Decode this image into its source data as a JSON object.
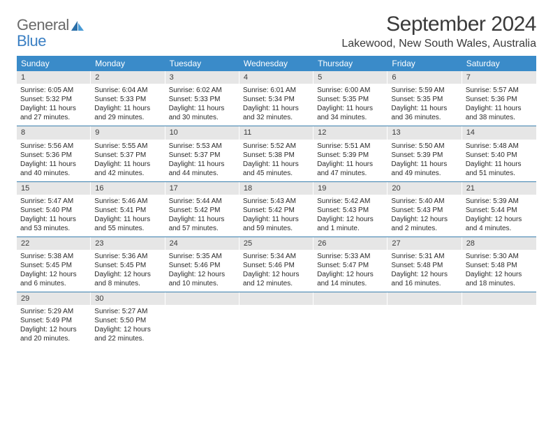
{
  "logo": {
    "text1": "General",
    "text2": "Blue"
  },
  "title": "September 2024",
  "location": "Lakewood, New South Wales, Australia",
  "colors": {
    "header_bg": "#3a8bc9",
    "header_text": "#ffffff",
    "daynum_bg": "#e6e6e6",
    "rule": "#3a7fae",
    "logo_gray": "#6a6a6a",
    "logo_blue": "#3a7fc3"
  },
  "dayNames": [
    "Sunday",
    "Monday",
    "Tuesday",
    "Wednesday",
    "Thursday",
    "Friday",
    "Saturday"
  ],
  "weeks": [
    [
      {
        "n": "1",
        "sr": "6:05 AM",
        "ss": "5:32 PM",
        "dl": "11 hours and 27 minutes."
      },
      {
        "n": "2",
        "sr": "6:04 AM",
        "ss": "5:33 PM",
        "dl": "11 hours and 29 minutes."
      },
      {
        "n": "3",
        "sr": "6:02 AM",
        "ss": "5:33 PM",
        "dl": "11 hours and 30 minutes."
      },
      {
        "n": "4",
        "sr": "6:01 AM",
        "ss": "5:34 PM",
        "dl": "11 hours and 32 minutes."
      },
      {
        "n": "5",
        "sr": "6:00 AM",
        "ss": "5:35 PM",
        "dl": "11 hours and 34 minutes."
      },
      {
        "n": "6",
        "sr": "5:59 AM",
        "ss": "5:35 PM",
        "dl": "11 hours and 36 minutes."
      },
      {
        "n": "7",
        "sr": "5:57 AM",
        "ss": "5:36 PM",
        "dl": "11 hours and 38 minutes."
      }
    ],
    [
      {
        "n": "8",
        "sr": "5:56 AM",
        "ss": "5:36 PM",
        "dl": "11 hours and 40 minutes."
      },
      {
        "n": "9",
        "sr": "5:55 AM",
        "ss": "5:37 PM",
        "dl": "11 hours and 42 minutes."
      },
      {
        "n": "10",
        "sr": "5:53 AM",
        "ss": "5:37 PM",
        "dl": "11 hours and 44 minutes."
      },
      {
        "n": "11",
        "sr": "5:52 AM",
        "ss": "5:38 PM",
        "dl": "11 hours and 45 minutes."
      },
      {
        "n": "12",
        "sr": "5:51 AM",
        "ss": "5:39 PM",
        "dl": "11 hours and 47 minutes."
      },
      {
        "n": "13",
        "sr": "5:50 AM",
        "ss": "5:39 PM",
        "dl": "11 hours and 49 minutes."
      },
      {
        "n": "14",
        "sr": "5:48 AM",
        "ss": "5:40 PM",
        "dl": "11 hours and 51 minutes."
      }
    ],
    [
      {
        "n": "15",
        "sr": "5:47 AM",
        "ss": "5:40 PM",
        "dl": "11 hours and 53 minutes."
      },
      {
        "n": "16",
        "sr": "5:46 AM",
        "ss": "5:41 PM",
        "dl": "11 hours and 55 minutes."
      },
      {
        "n": "17",
        "sr": "5:44 AM",
        "ss": "5:42 PM",
        "dl": "11 hours and 57 minutes."
      },
      {
        "n": "18",
        "sr": "5:43 AM",
        "ss": "5:42 PM",
        "dl": "11 hours and 59 minutes."
      },
      {
        "n": "19",
        "sr": "5:42 AM",
        "ss": "5:43 PM",
        "dl": "12 hours and 1 minute."
      },
      {
        "n": "20",
        "sr": "5:40 AM",
        "ss": "5:43 PM",
        "dl": "12 hours and 2 minutes."
      },
      {
        "n": "21",
        "sr": "5:39 AM",
        "ss": "5:44 PM",
        "dl": "12 hours and 4 minutes."
      }
    ],
    [
      {
        "n": "22",
        "sr": "5:38 AM",
        "ss": "5:45 PM",
        "dl": "12 hours and 6 minutes."
      },
      {
        "n": "23",
        "sr": "5:36 AM",
        "ss": "5:45 PM",
        "dl": "12 hours and 8 minutes."
      },
      {
        "n": "24",
        "sr": "5:35 AM",
        "ss": "5:46 PM",
        "dl": "12 hours and 10 minutes."
      },
      {
        "n": "25",
        "sr": "5:34 AM",
        "ss": "5:46 PM",
        "dl": "12 hours and 12 minutes."
      },
      {
        "n": "26",
        "sr": "5:33 AM",
        "ss": "5:47 PM",
        "dl": "12 hours and 14 minutes."
      },
      {
        "n": "27",
        "sr": "5:31 AM",
        "ss": "5:48 PM",
        "dl": "12 hours and 16 minutes."
      },
      {
        "n": "28",
        "sr": "5:30 AM",
        "ss": "5:48 PM",
        "dl": "12 hours and 18 minutes."
      }
    ],
    [
      {
        "n": "29",
        "sr": "5:29 AM",
        "ss": "5:49 PM",
        "dl": "12 hours and 20 minutes."
      },
      {
        "n": "30",
        "sr": "5:27 AM",
        "ss": "5:50 PM",
        "dl": "12 hours and 22 minutes."
      },
      {
        "empty": true
      },
      {
        "empty": true
      },
      {
        "empty": true
      },
      {
        "empty": true
      },
      {
        "empty": true
      }
    ]
  ],
  "labels": {
    "sunrise": "Sunrise: ",
    "sunset": "Sunset: ",
    "daylight": "Daylight: "
  }
}
